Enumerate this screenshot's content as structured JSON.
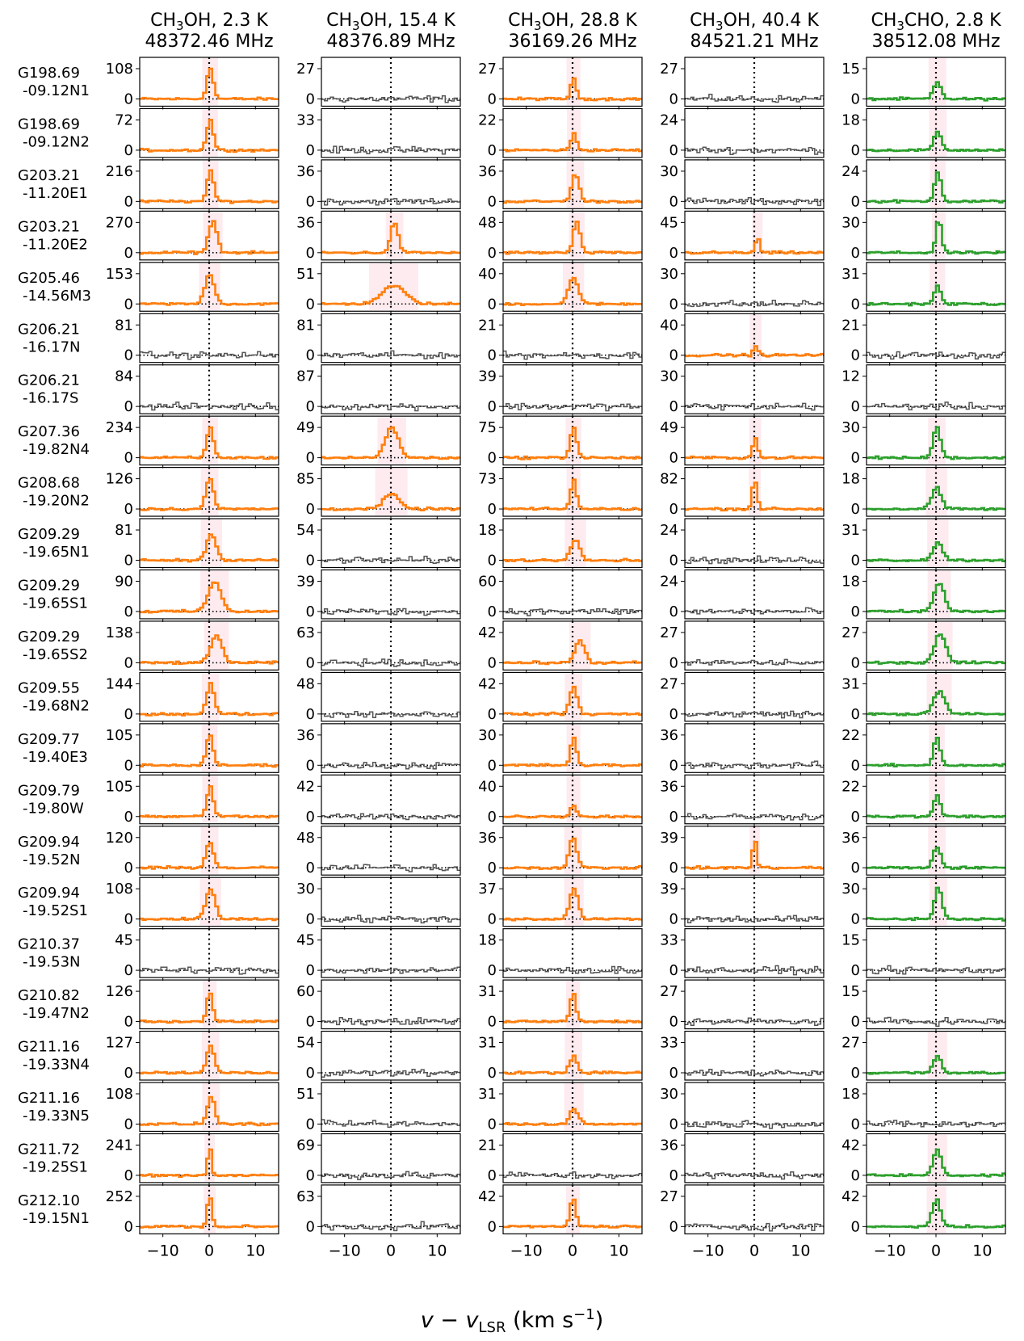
{
  "chart_data": {
    "type": "line",
    "xlabel": "v − v_LSR (km s⁻¹)",
    "xlabel_parts": {
      "v": "v",
      "minus": " − ",
      "v2": "v",
      "sub": "LSR",
      "unit": " (km s",
      "exp": "−1",
      "close": ")"
    },
    "xlim": [
      -15,
      15
    ],
    "xticks": [
      -10,
      0,
      10
    ],
    "xtick_labels": [
      "−10",
      "0",
      "10"
    ],
    "columns": [
      {
        "mol": "CH",
        "sub": "3",
        "mol_rest": "OH",
        "temp": ", 2.3 K",
        "freq": "48372.46 MHz",
        "color": "#ff7f0e"
      },
      {
        "mol": "CH",
        "sub": "3",
        "mol_rest": "OH",
        "temp": ", 15.4 K",
        "freq": "48376.89 MHz",
        "color": "#ff7f0e"
      },
      {
        "mol": "CH",
        "sub": "3",
        "mol_rest": "OH",
        "temp": ", 28.8 K",
        "freq": "36169.26 MHz",
        "color": "#ff7f0e"
      },
      {
        "mol": "CH",
        "sub": "3",
        "mol_rest": "OH",
        "temp": ", 40.4 K",
        "freq": "84521.21 MHz",
        "color": "#ff7f0e"
      },
      {
        "mol": "CH",
        "sub": "3",
        "mol_rest": "CHO",
        "temp": ", 2.8 K",
        "freq": "38512.08 MHz",
        "color": "#2ca02c"
      }
    ],
    "nondetection_color": "#555555",
    "sources": [
      {
        "name1": "G198.69",
        "name2": "-09.12N1",
        "ymax": [
          "108",
          "27",
          "27",
          "27",
          "15"
        ],
        "det": [
          1,
          0,
          1,
          0,
          1
        ],
        "amp": [
          1.0,
          0,
          0.65,
          0,
          0.55
        ],
        "w": [
          0.7,
          0,
          0.6,
          0,
          0.8
        ],
        "v0": [
          0.2,
          0,
          0.2,
          0,
          0.3
        ]
      },
      {
        "name1": "G198.69",
        "name2": "-09.12N2",
        "ymax": [
          "72",
          "33",
          "22",
          "24",
          "18"
        ],
        "det": [
          1,
          0,
          1,
          0,
          1
        ],
        "amp": [
          1.0,
          0,
          0.55,
          0,
          0.6
        ],
        "w": [
          0.7,
          0,
          0.6,
          0,
          0.8
        ],
        "v0": [
          0.2,
          0,
          0.3,
          0,
          0.4
        ]
      },
      {
        "name1": "G203.21",
        "name2": "-11.20E1",
        "ymax": [
          "216",
          "36",
          "36",
          "30",
          "24"
        ],
        "det": [
          1,
          0,
          1,
          0,
          1
        ],
        "amp": [
          1.0,
          0,
          0.9,
          0,
          1.0
        ],
        "w": [
          0.7,
          0,
          0.8,
          0,
          0.7
        ],
        "v0": [
          0.3,
          0,
          0.6,
          0,
          0.4
        ]
      },
      {
        "name1": "G203.21",
        "name2": "-11.20E2",
        "ymax": [
          "270",
          "36",
          "48",
          "45",
          "30"
        ],
        "det": [
          1,
          1,
          1,
          1,
          1
        ],
        "amp": [
          1.05,
          1.0,
          1.05,
          0.55,
          1.1
        ],
        "w": [
          0.9,
          0.8,
          0.7,
          0.4,
          0.6
        ],
        "v0": [
          0.8,
          0.8,
          0.9,
          0.7,
          0.6
        ]
      },
      {
        "name1": "G205.46",
        "name2": "-14.56M3",
        "ymax": [
          "153",
          "51",
          "40",
          "30",
          "31"
        ],
        "det": [
          1,
          1,
          1,
          0,
          1
        ],
        "amp": [
          1.0,
          0.6,
          0.9,
          0,
          0.6
        ],
        "w": [
          1.0,
          2.5,
          1.0,
          0,
          0.7
        ],
        "v0": [
          0.1,
          0.6,
          0.2,
          0,
          0.3
        ]
      },
      {
        "name1": "G206.21",
        "name2": "-16.17N",
        "ymax": [
          "81",
          "81",
          "21",
          "40",
          "21"
        ],
        "det": [
          0,
          0,
          0,
          1,
          0
        ],
        "amp": [
          0,
          0,
          0,
          0.3,
          0
        ],
        "w": [
          0,
          0,
          0,
          0.5,
          0
        ],
        "v0": [
          0,
          0,
          0,
          0.3,
          0
        ]
      },
      {
        "name1": "G206.21",
        "name2": "-16.17S",
        "ymax": [
          "84",
          "87",
          "39",
          "30",
          "12"
        ],
        "det": [
          0,
          0,
          0,
          0,
          0
        ],
        "amp": [
          0,
          0,
          0,
          0,
          0
        ],
        "w": [
          0,
          0,
          0,
          0,
          0
        ],
        "v0": [
          0,
          0,
          0,
          0,
          0
        ]
      },
      {
        "name1": "G207.36",
        "name2": "-19.82N4",
        "ymax": [
          "234",
          "49",
          "75",
          "49",
          "30"
        ],
        "det": [
          1,
          1,
          1,
          1,
          1
        ],
        "amp": [
          1.0,
          1.0,
          1.0,
          0.7,
          1.0
        ],
        "w": [
          0.7,
          1.4,
          0.7,
          0.5,
          0.8
        ],
        "v0": [
          0.2,
          0.2,
          0.2,
          0.2,
          0.2
        ]
      },
      {
        "name1": "G208.68",
        "name2": "-19.20N2",
        "ymax": [
          "126",
          "85",
          "73",
          "82",
          "18"
        ],
        "det": [
          1,
          1,
          1,
          1,
          1
        ],
        "amp": [
          1.0,
          0.5,
          1.0,
          1.0,
          0.7
        ],
        "w": [
          0.8,
          1.6,
          0.6,
          0.5,
          1.0
        ],
        "v0": [
          0.1,
          0.1,
          0.2,
          0.1,
          0.1
        ]
      },
      {
        "name1": "G209.29",
        "name2": "-19.65N1",
        "ymax": [
          "81",
          "54",
          "18",
          "24",
          "31"
        ],
        "det": [
          1,
          0,
          1,
          0,
          1
        ],
        "amp": [
          0.9,
          0,
          0.7,
          0,
          0.6
        ],
        "w": [
          1.0,
          0,
          1.0,
          0,
          1.0
        ],
        "v0": [
          0.5,
          0,
          0.6,
          0,
          0.4
        ]
      },
      {
        "name1": "G209.29",
        "name2": "-19.65S1",
        "ymax": [
          "90",
          "39",
          "60",
          "24",
          "18"
        ],
        "det": [
          1,
          0,
          0,
          0,
          1
        ],
        "amp": [
          0.95,
          0,
          0,
          0,
          0.95
        ],
        "w": [
          1.4,
          0,
          0,
          0,
          1.1
        ],
        "v0": [
          1.2,
          0,
          0,
          0,
          0.7
        ]
      },
      {
        "name1": "G209.29",
        "name2": "-19.65S2",
        "ymax": [
          "138",
          "63",
          "42",
          "27",
          "27"
        ],
        "det": [
          1,
          0,
          1,
          0,
          1
        ],
        "amp": [
          0.9,
          0,
          0.75,
          0,
          0.95
        ],
        "w": [
          1.2,
          0,
          1.0,
          0,
          1.2
        ],
        "v0": [
          1.6,
          0,
          1.6,
          0,
          0.9
        ]
      },
      {
        "name1": "G209.55",
        "name2": "-19.68N2",
        "ymax": [
          "144",
          "48",
          "42",
          "27",
          "31"
        ],
        "det": [
          1,
          0,
          1,
          0,
          1
        ],
        "amp": [
          1.0,
          0,
          0.9,
          0,
          0.75
        ],
        "w": [
          0.8,
          0,
          0.8,
          0,
          1.2
        ],
        "v0": [
          0.3,
          0,
          0.2,
          0,
          0.7
        ]
      },
      {
        "name1": "G209.77",
        "name2": "-19.40E3",
        "ymax": [
          "105",
          "36",
          "30",
          "36",
          "22"
        ],
        "det": [
          1,
          0,
          1,
          0,
          1
        ],
        "amp": [
          1.0,
          0,
          0.95,
          0,
          0.95
        ],
        "w": [
          0.7,
          0,
          0.6,
          0,
          0.7
        ],
        "v0": [
          0.1,
          0,
          0.2,
          0,
          0.2
        ]
      },
      {
        "name1": "G209.79",
        "name2": "-19.80W",
        "ymax": [
          "105",
          "42",
          "40",
          "36",
          "22"
        ],
        "det": [
          1,
          0,
          1,
          0,
          1
        ],
        "amp": [
          1.0,
          0,
          0.4,
          0,
          0.7
        ],
        "w": [
          0.7,
          0,
          0.6,
          0,
          0.7
        ],
        "v0": [
          0.2,
          0,
          0.2,
          0,
          0.2
        ]
      },
      {
        "name1": "G209.94",
        "name2": "-19.52N",
        "ymax": [
          "120",
          "48",
          "36",
          "39",
          "36"
        ],
        "det": [
          1,
          0,
          1,
          1,
          1
        ],
        "amp": [
          0.85,
          0,
          1.0,
          1.0,
          0.7
        ],
        "w": [
          0.8,
          0,
          0.8,
          0.4,
          0.8
        ],
        "v0": [
          0.1,
          0,
          0.1,
          0.1,
          0.2
        ]
      },
      {
        "name1": "G209.94",
        "name2": "-19.52S1",
        "ymax": [
          "108",
          "30",
          "37",
          "39",
          "30"
        ],
        "det": [
          1,
          0,
          1,
          0,
          1
        ],
        "amp": [
          1.0,
          0,
          1.0,
          0,
          1.05
        ],
        "w": [
          1.0,
          0,
          0.9,
          0,
          0.8
        ],
        "v0": [
          0.3,
          0,
          0.3,
          0,
          0.5
        ]
      },
      {
        "name1": "G210.37",
        "name2": "-19.53N",
        "ymax": [
          "45",
          "45",
          "18",
          "33",
          "15"
        ],
        "det": [
          0,
          0,
          0,
          0,
          0
        ],
        "amp": [
          0,
          0,
          0,
          0,
          0
        ],
        "w": [
          0,
          0,
          0,
          0,
          0
        ],
        "v0": [
          0,
          0,
          0,
          0,
          0
        ]
      },
      {
        "name1": "G210.82",
        "name2": "-19.47N2",
        "ymax": [
          "126",
          "60",
          "31",
          "27",
          "15"
        ],
        "det": [
          1,
          0,
          1,
          0,
          0
        ],
        "amp": [
          1.0,
          0,
          0.95,
          0,
          0
        ],
        "w": [
          0.6,
          0,
          0.6,
          0,
          0
        ],
        "v0": [
          0.1,
          0,
          0.1,
          0,
          0
        ]
      },
      {
        "name1": "G211.16",
        "name2": "-19.33N4",
        "ymax": [
          "127",
          "54",
          "31",
          "33",
          "27"
        ],
        "det": [
          1,
          0,
          1,
          0,
          1
        ],
        "amp": [
          0.9,
          0,
          0.55,
          0,
          0.55
        ],
        "w": [
          0.8,
          0,
          0.8,
          0,
          0.9
        ],
        "v0": [
          0.3,
          0,
          0.2,
          0,
          0.3
        ]
      },
      {
        "name1": "G211.16",
        "name2": "-19.33N5",
        "ymax": [
          "108",
          "51",
          "31",
          "30",
          "18"
        ],
        "det": [
          1,
          0,
          1,
          0,
          0
        ],
        "amp": [
          0.9,
          0,
          0.5,
          0,
          0
        ],
        "w": [
          0.8,
          0,
          0.9,
          0,
          0
        ],
        "v0": [
          0.4,
          0,
          0.3,
          0,
          0
        ]
      },
      {
        "name1": "G211.72",
        "name2": "-19.25S1",
        "ymax": [
          "241",
          "69",
          "21",
          "36",
          "42"
        ],
        "det": [
          1,
          0,
          0,
          0,
          1
        ],
        "amp": [
          1.0,
          0,
          0,
          0,
          0.85
        ],
        "w": [
          0.4,
          0,
          0,
          0,
          0.9
        ],
        "v0": [
          0.1,
          0,
          0,
          0,
          0.3
        ]
      },
      {
        "name1": "G212.10",
        "name2": "-19.15N1",
        "ymax": [
          "252",
          "63",
          "42",
          "27",
          "42"
        ],
        "det": [
          1,
          0,
          1,
          0,
          1
        ],
        "amp": [
          1.0,
          0,
          1.0,
          0,
          0.9
        ],
        "w": [
          0.5,
          0,
          0.6,
          0,
          0.9
        ],
        "v0": [
          0.1,
          0,
          0.1,
          0,
          0.1
        ]
      }
    ]
  }
}
